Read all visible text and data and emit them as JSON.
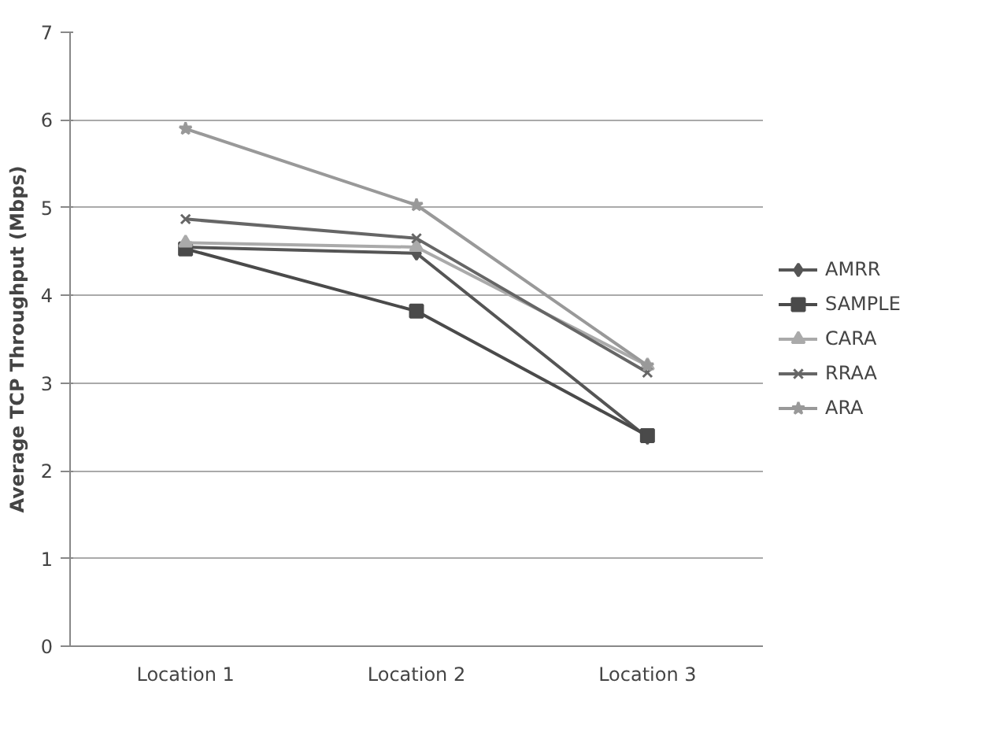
{
  "chart_data": {
    "type": "line",
    "ylabel": "Average TCP Throughput (Mbps)",
    "categories": [
      "Location 1",
      "Location 2",
      "Location 3"
    ],
    "ylim": [
      0,
      7
    ],
    "yticks": [
      0,
      1,
      2,
      3,
      4,
      5,
      6,
      7
    ],
    "grid": "y",
    "legend": "right",
    "series": [
      {
        "name": "AMRR",
        "color": "#555555",
        "marker": "diamond",
        "values": [
          4.55,
          4.48,
          2.38
        ]
      },
      {
        "name": "SAMPLE",
        "color": "#4a4a4a",
        "marker": "square",
        "values": [
          4.53,
          3.82,
          2.4
        ]
      },
      {
        "name": "CARA",
        "color": "#aaaaaa",
        "marker": "triangle",
        "values": [
          4.6,
          4.55,
          3.2
        ]
      },
      {
        "name": "RRAA",
        "color": "#666666",
        "marker": "cross",
        "values": [
          4.87,
          4.65,
          3.12
        ]
      },
      {
        "name": "ARA",
        "color": "#999999",
        "marker": "star",
        "values": [
          5.9,
          5.03,
          3.2
        ]
      }
    ]
  }
}
